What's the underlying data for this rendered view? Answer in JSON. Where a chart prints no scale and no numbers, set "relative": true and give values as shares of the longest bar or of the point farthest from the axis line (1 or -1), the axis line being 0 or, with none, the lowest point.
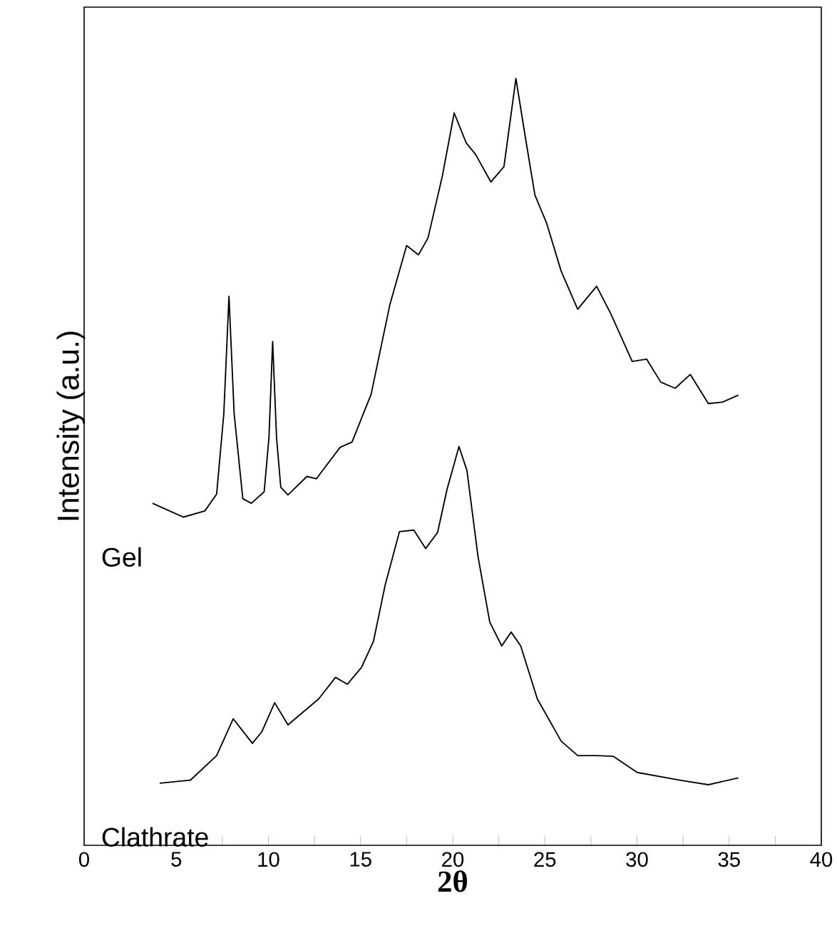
{
  "chart_data": {
    "type": "line",
    "relative": true,
    "xlabel": "2θ",
    "ylabel": "Intensity (a.u.)",
    "xlim": [
      0,
      40
    ],
    "xticks": [
      0,
      {
        "value": 2.5,
        "label": null
      },
      5,
      {
        "value": 7.5,
        "label": null
      },
      10,
      {
        "value": 12.5,
        "label": null
      },
      15,
      {
        "value": 17.5,
        "label": null
      },
      20,
      {
        "value": 22.5,
        "label": null
      },
      25,
      {
        "value": 27.5,
        "label": null
      },
      30,
      {
        "value": 32.5,
        "label": null
      },
      35,
      {
        "value": 37.5,
        "label": null
      },
      40
    ],
    "grid": false,
    "legend": false,
    "marker": "none",
    "line_style": "solid",
    "series": [
      {
        "name": "Gel",
        "color": "#000000",
        "x": [
          3.71,
          5.38,
          6.55,
          7.19,
          7.58,
          7.86,
          8.14,
          8.61,
          9.07,
          9.77,
          10.03,
          10.23,
          10.44,
          10.67,
          11.06,
          12.09,
          12.6,
          13.89,
          14.54,
          15.57,
          16.6,
          17.5,
          18.14,
          18.66,
          19.44,
          20.08,
          20.73,
          21.24,
          22.07,
          22.78,
          23.43,
          23.95,
          24.46,
          25.1,
          25.88,
          26.78,
          27.81,
          28.58,
          29.74,
          30.52,
          31.29,
          32.07,
          32.89,
          33.87,
          34.65,
          35.5
        ],
        "values": [
          0.446,
          0.428,
          0.436,
          0.458,
          0.563,
          0.716,
          0.563,
          0.452,
          0.446,
          0.461,
          0.532,
          0.657,
          0.532,
          0.467,
          0.457,
          0.481,
          0.478,
          0.519,
          0.526,
          0.588,
          0.706,
          0.782,
          0.77,
          0.792,
          0.873,
          0.955,
          0.916,
          0.901,
          0.865,
          0.885,
          1.0,
          0.922,
          0.848,
          0.811,
          0.749,
          0.699,
          0.729,
          0.693,
          0.631,
          0.634,
          0.604,
          0.596,
          0.614,
          0.576,
          0.578,
          0.587
        ]
      },
      {
        "name": "Clathrate",
        "color": "#000000",
        "x": [
          4.1,
          5.77,
          7.19,
          8.09,
          9.13,
          9.64,
          10.34,
          11.06,
          12.73,
          13.64,
          14.28,
          15.05,
          15.7,
          16.34,
          17.11,
          17.89,
          18.53,
          19.18,
          19.69,
          20.34,
          20.77,
          21.37,
          22.01,
          22.66,
          23.17,
          23.69,
          24.59,
          25.88,
          26.78,
          27.81,
          28.72,
          30.01,
          32.33,
          33.87,
          35.5
        ],
        "values": [
          0.081,
          0.085,
          0.117,
          0.165,
          0.133,
          0.148,
          0.186,
          0.157,
          0.191,
          0.219,
          0.21,
          0.232,
          0.266,
          0.34,
          0.409,
          0.411,
          0.387,
          0.408,
          0.464,
          0.52,
          0.489,
          0.377,
          0.291,
          0.26,
          0.278,
          0.26,
          0.191,
          0.136,
          0.117,
          0.117,
          0.116,
          0.095,
          0.085,
          0.079,
          0.088
        ]
      }
    ]
  }
}
